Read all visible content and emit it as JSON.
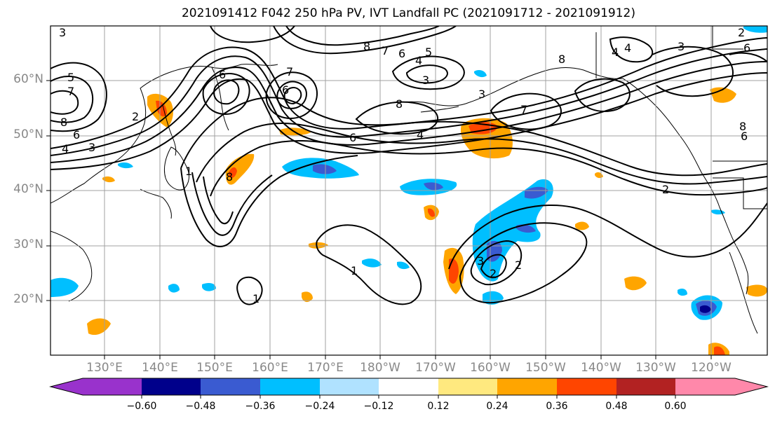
{
  "title": "2021091412 F042 250 hPa PV, IVT Landfall PC (2021091712 - 2021091912)",
  "map": {
    "lat_labels": [
      "60°N",
      "50°N",
      "40°N",
      "30°N",
      "20°N"
    ],
    "lon_labels": [
      "130°E",
      "140°E",
      "150°E",
      "160°E",
      "170°E",
      "180°W",
      "170°W",
      "160°W",
      "150°W",
      "140°W",
      "130°W",
      "120°W"
    ],
    "gridline_color": "#a0a0a0",
    "contour_color": "#000000",
    "pv_contour_labels": [
      "3",
      "5",
      "7",
      "8",
      "6",
      "4",
      "3",
      "2",
      "8",
      "6",
      "7",
      "6",
      "5",
      "4",
      "3",
      "7",
      "8",
      "6",
      "4",
      "3",
      "8",
      "6",
      "4",
      "3",
      "2",
      "8",
      "6",
      "1",
      "1",
      "1",
      "2",
      "3",
      "2",
      "4",
      "8",
      "7",
      "6",
      "2"
    ]
  },
  "colorbar": {
    "tick_labels": [
      "−0.60",
      "−0.48",
      "−0.36",
      "−0.24",
      "−0.12",
      "0.12",
      "0.24",
      "0.36",
      "0.48",
      "0.60"
    ],
    "colors": [
      "#9932cc",
      "#00008b",
      "#3a5bd1",
      "#00bfff",
      "#b0e2ff",
      "#ffffff",
      "#ffe97f",
      "#ffa500",
      "#ff4500",
      "#b22222",
      "#ff88aa"
    ]
  }
}
